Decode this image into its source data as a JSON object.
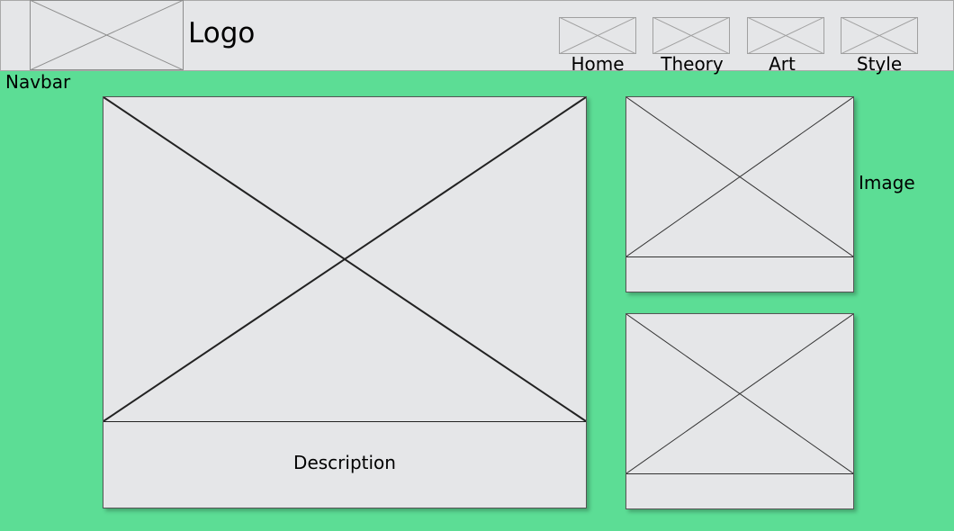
{
  "navbar": {
    "caption": "Navbar",
    "logo_text": "Logo",
    "items": [
      {
        "label": "Home"
      },
      {
        "label": "Theory"
      },
      {
        "label": "Art"
      },
      {
        "label": "Style"
      }
    ]
  },
  "main": {
    "description": "Description"
  },
  "side": {
    "caption": "Image"
  },
  "colors": {
    "background": "#5cdd95",
    "placeholder": "#e5e6e8"
  }
}
